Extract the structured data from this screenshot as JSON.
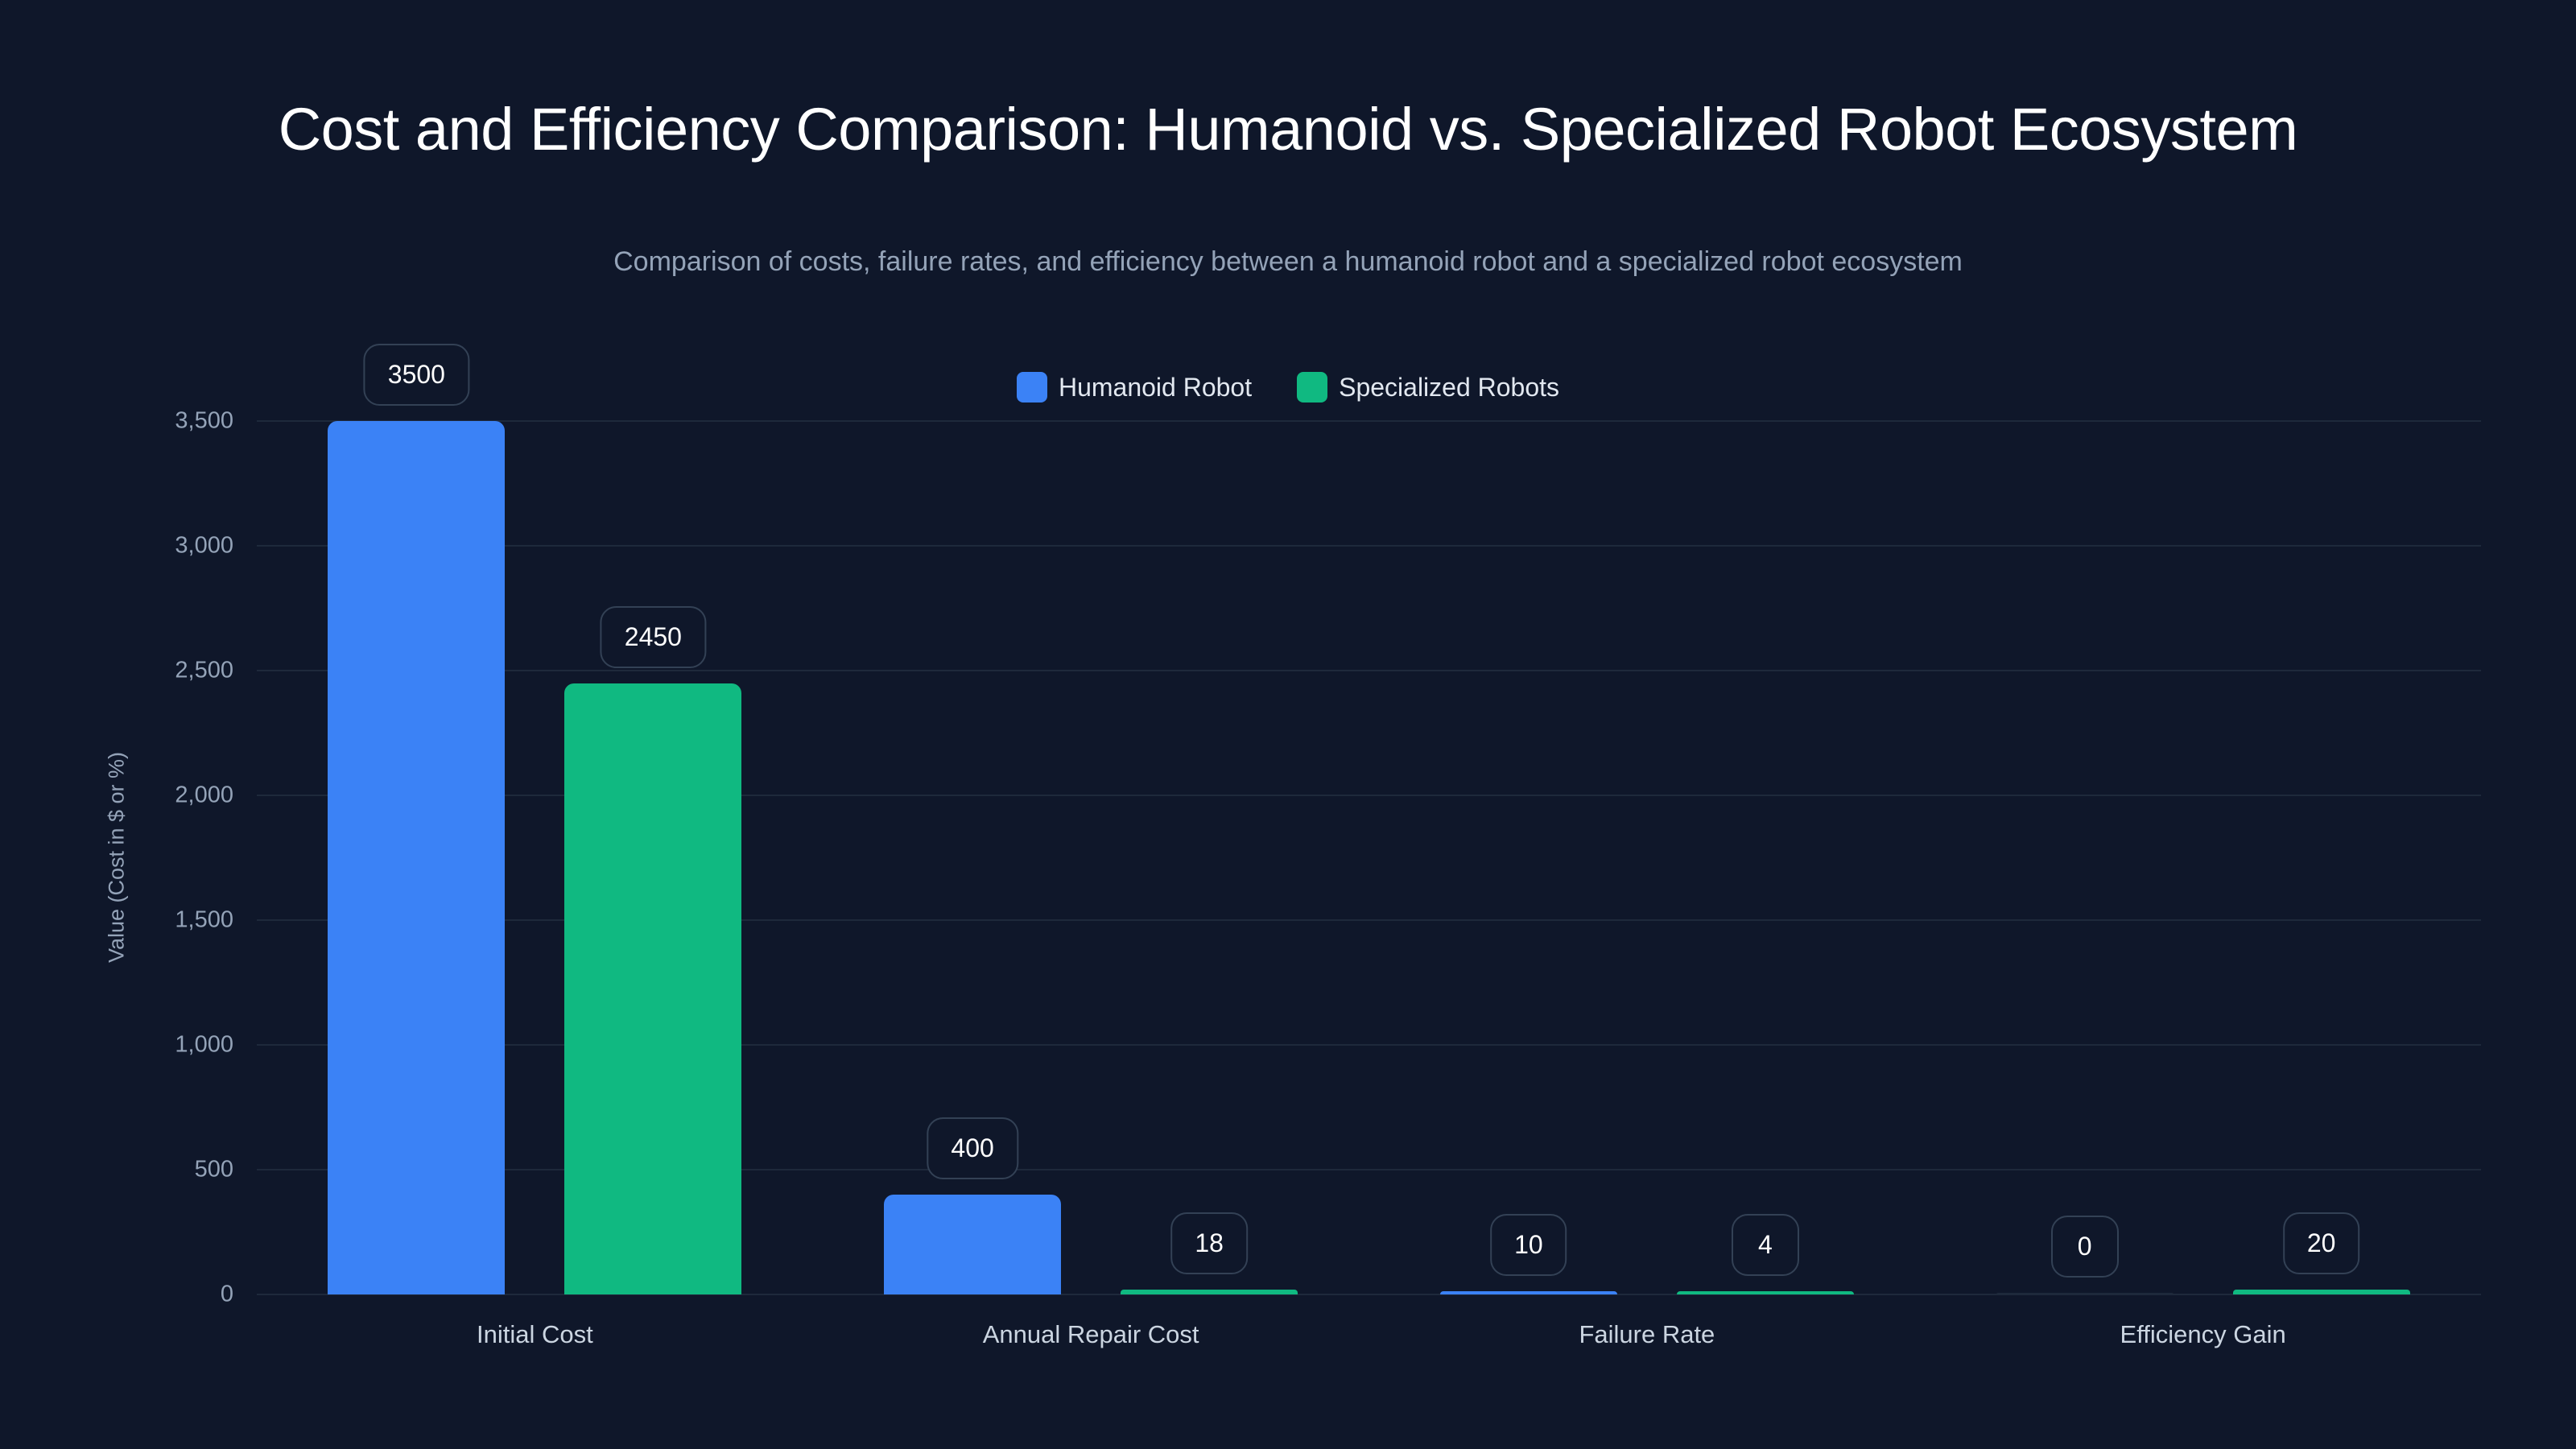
{
  "chart_data": {
    "type": "bar",
    "title": "Cost and Efficiency Comparison: Humanoid vs. Specialized Robot Ecosystem",
    "subtitle": "Comparison of costs, failure rates, and efficiency between a humanoid robot and a specialized robot ecosystem",
    "xlabel": "",
    "ylabel": "Value (Cost in $ or %)",
    "ylim": [
      0,
      3500
    ],
    "yticks": [
      "0",
      "500",
      "1,000",
      "1,500",
      "2,000",
      "2,500",
      "3,000",
      "3,500"
    ],
    "categories": [
      "Initial Cost",
      "Annual Repair Cost",
      "Failure Rate",
      "Efficiency Gain"
    ],
    "series": [
      {
        "name": "Humanoid Robot",
        "color": "#3b82f6",
        "values": [
          3500,
          400,
          10,
          0
        ]
      },
      {
        "name": "Specialized Robots",
        "color": "#10b981",
        "values": [
          2450,
          18,
          4,
          20
        ]
      }
    ],
    "grid": true,
    "legend_position": "top"
  },
  "colors": {
    "background": "#0f172a",
    "humanoid": "#3b82f6",
    "specialized": "#10b981",
    "grid": "#1e293b"
  }
}
